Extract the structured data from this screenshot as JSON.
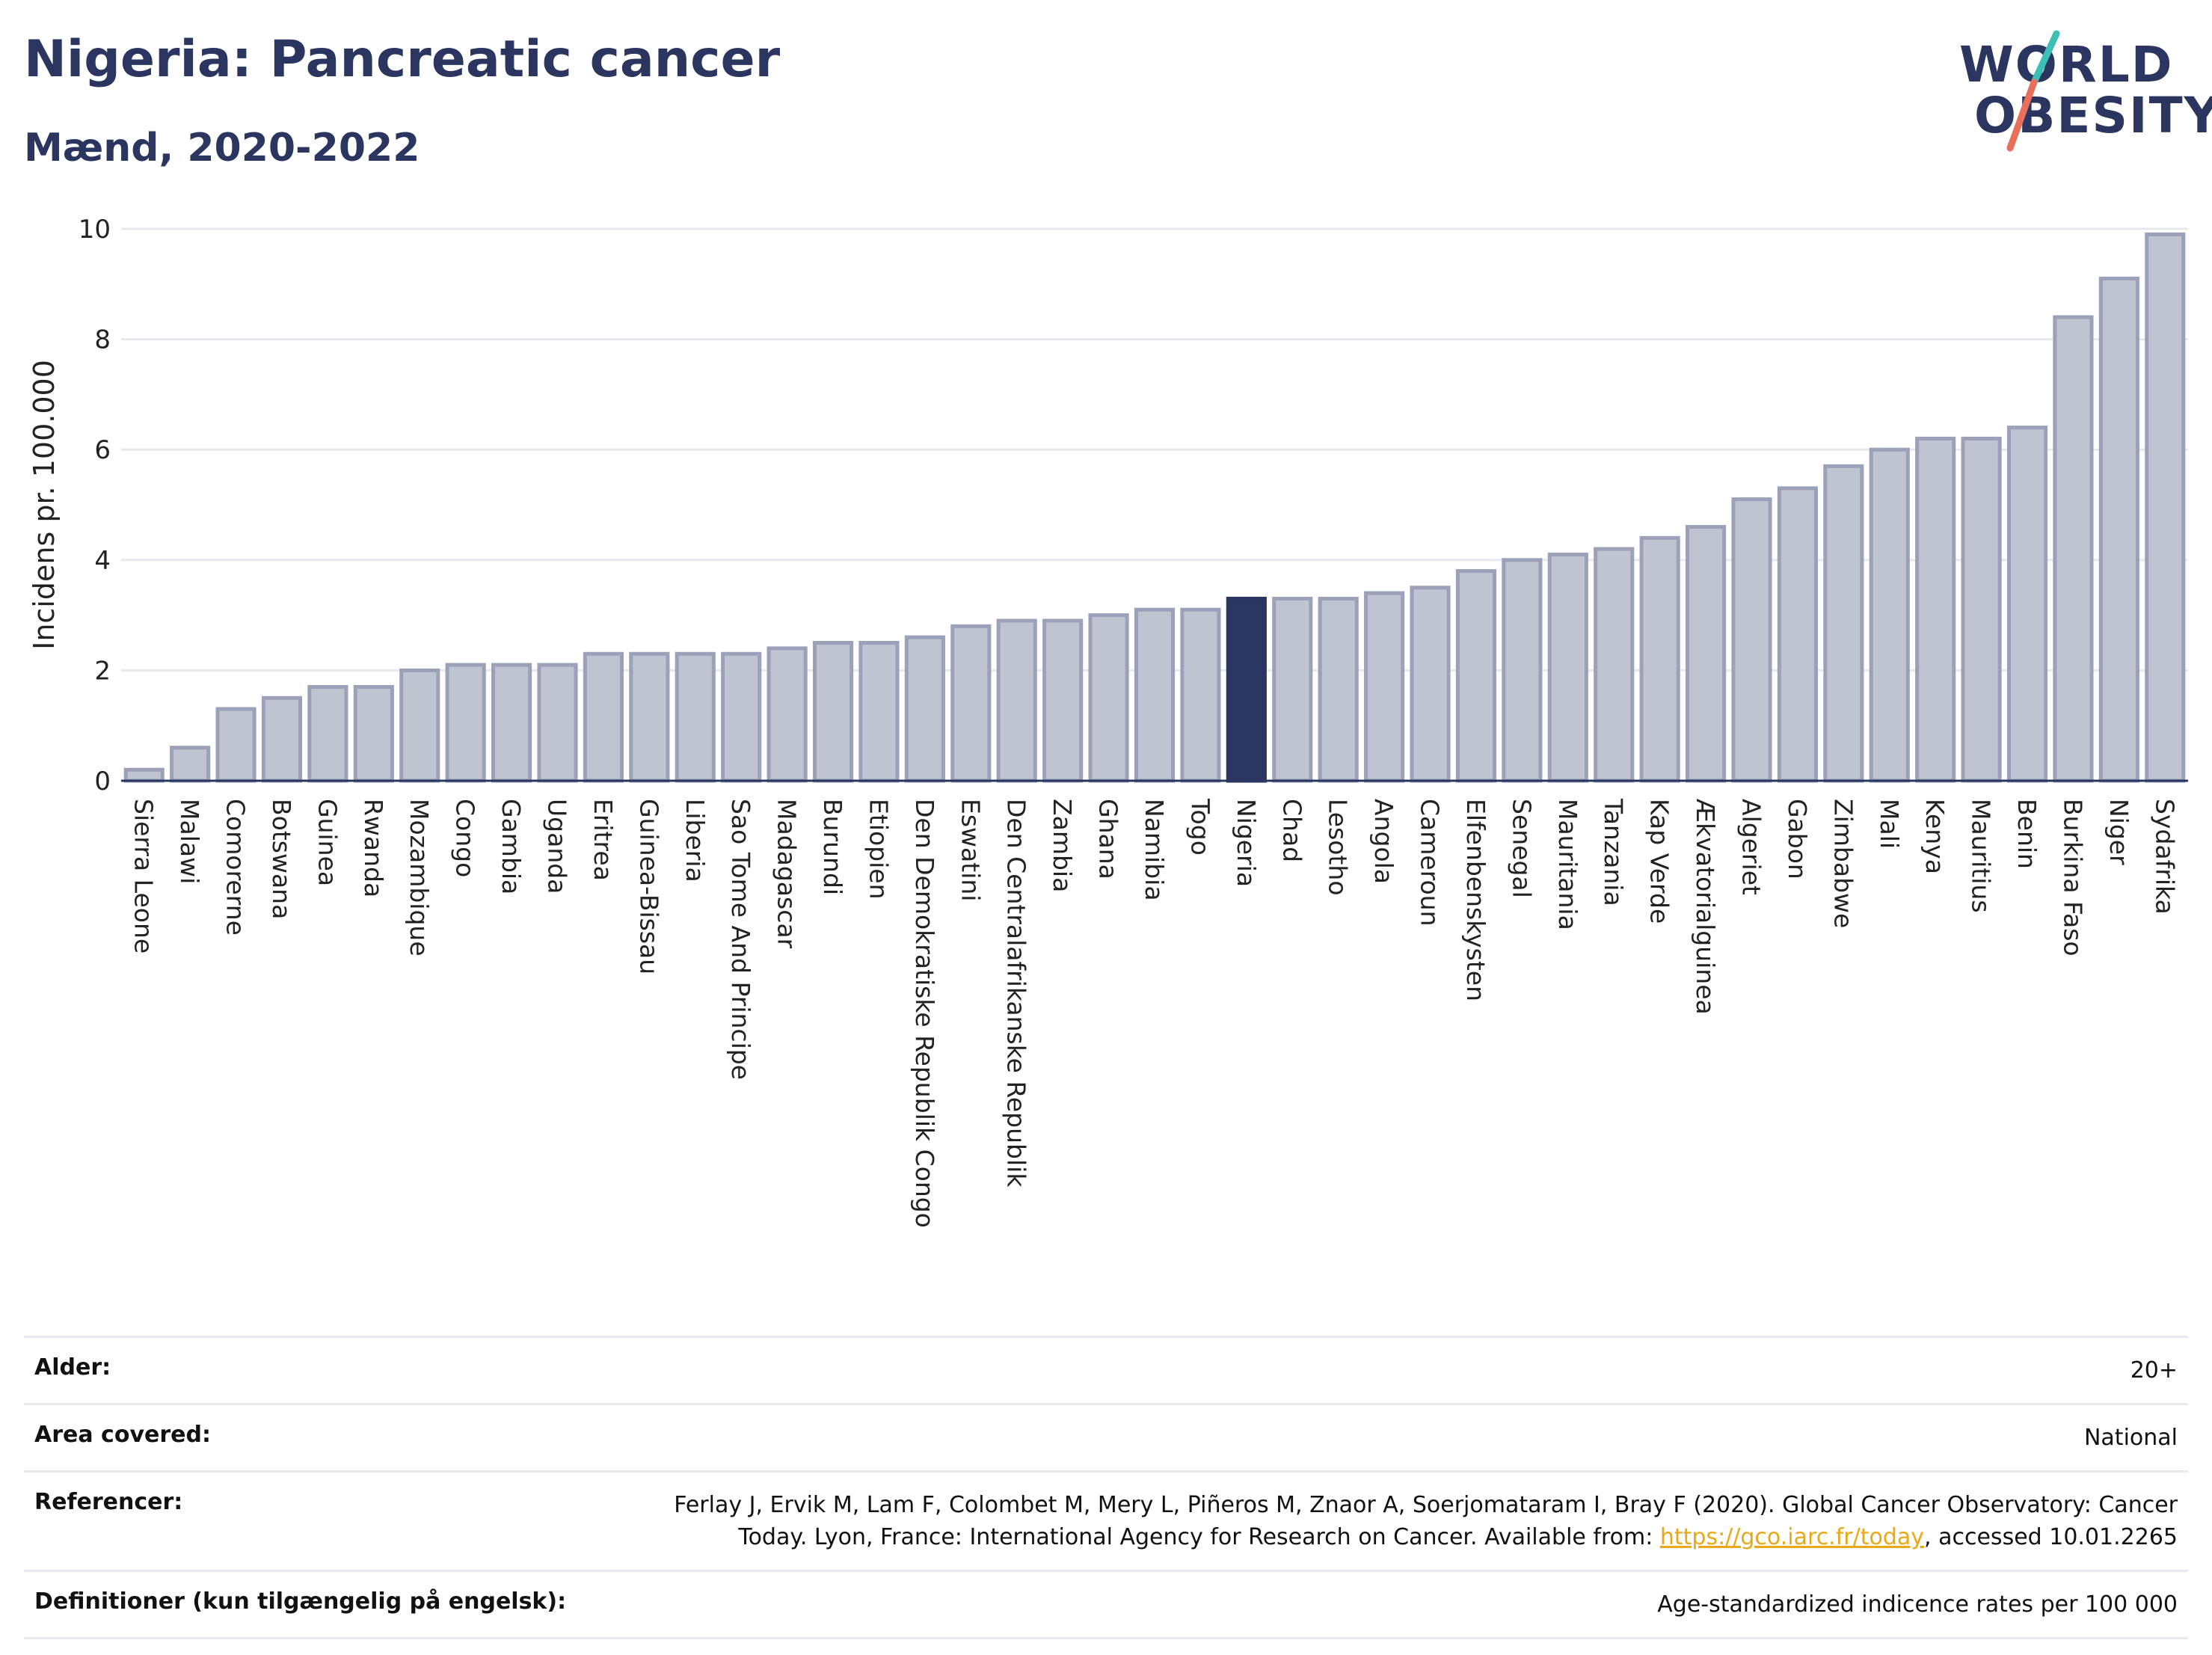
{
  "header": {
    "title": "Nigeria: Pancreatic cancer",
    "subtitle": "Mænd, 2020-2022"
  },
  "logo": {
    "line1": "WORLD",
    "line2": "OBESITY",
    "colors": {
      "text": "#2a3560",
      "teal": "#3cbfb4",
      "coral": "#e8705a"
    }
  },
  "chart_data": {
    "type": "bar",
    "title": "Nigeria: Pancreatic cancer",
    "subtitle": "Mænd, 2020-2022",
    "ylabel": "Incidens pr. 100.000",
    "xlabel": "",
    "ylim": [
      0,
      10
    ],
    "yticks": [
      0,
      2,
      4,
      6,
      8,
      10
    ],
    "grid": true,
    "highlight": "Nigeria",
    "colors": {
      "bar": "#bfc4d1",
      "bar_border": "#9aa1b8",
      "highlight": "#2a3560"
    },
    "categories": [
      "Sierra Leone",
      "Malawi",
      "Comorerne",
      "Botswana",
      "Guinea",
      "Rwanda",
      "Mozambique",
      "Congo",
      "Gambia",
      "Uganda",
      "Eritrea",
      "Guinea-Bissau",
      "Liberia",
      "Sao Tome And Principe",
      "Madagascar",
      "Burundi",
      "Etiopien",
      "Den Demokratiske Republik Congo",
      "Eswatini",
      "Den Centralafrikanske Republik",
      "Zambia",
      "Ghana",
      "Namibia",
      "Togo",
      "Nigeria",
      "Chad",
      "Lesotho",
      "Angola",
      "Cameroun",
      "Elfenbenskysten",
      "Senegal",
      "Mauritania",
      "Tanzania",
      "Kap Verde",
      "Ækvatorialguinea",
      "Algeriet",
      "Gabon",
      "Zimbabwe",
      "Mali",
      "Kenya",
      "Mauritius",
      "Benin",
      "Burkina Faso",
      "Niger",
      "Sydafrika"
    ],
    "values": [
      0.2,
      0.6,
      1.3,
      1.5,
      1.7,
      1.7,
      2.0,
      2.1,
      2.1,
      2.1,
      2.3,
      2.3,
      2.3,
      2.3,
      2.4,
      2.5,
      2.5,
      2.6,
      2.8,
      2.9,
      2.9,
      3.0,
      3.1,
      3.1,
      3.3,
      3.3,
      3.3,
      3.4,
      3.5,
      3.8,
      4.0,
      4.1,
      4.2,
      4.4,
      4.6,
      5.1,
      5.3,
      5.7,
      6.0,
      6.2,
      6.2,
      6.4,
      8.4,
      9.1,
      9.9
    ]
  },
  "info": {
    "age_label": "Alder:",
    "age_value": "20+",
    "area_label": "Area covered:",
    "area_value": "National",
    "ref_label": "Referencer:",
    "ref_text_1": "Ferlay J, Ervik M, Lam F, Colombet M, Mery L, Piñeros M, Znaor A, Soerjomataram I, Bray F (2020). Global Cancer Observatory: Cancer Today. Lyon, France: International Agency for Research on Cancer. Available from: ",
    "ref_link": "https://gco.iarc.fr/today",
    "ref_text_2": ", accessed 10.01.2265",
    "def_label": "Definitioner (kun tilgængelig på engelsk):",
    "def_value": "Age-standardized indicence rates per 100 000"
  }
}
